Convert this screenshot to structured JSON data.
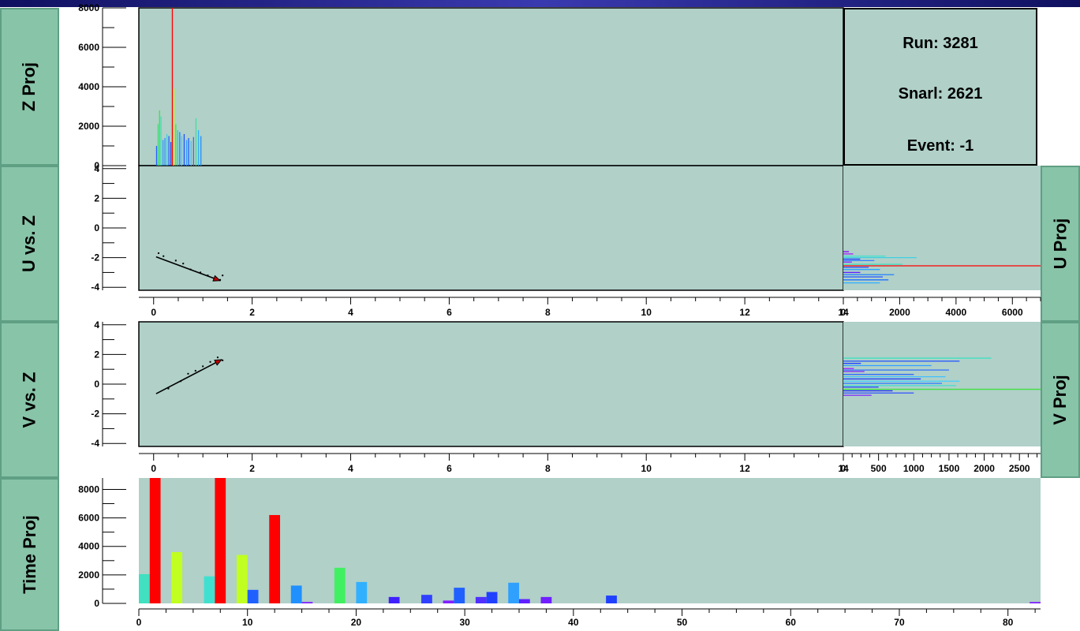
{
  "labels": {
    "zproj": "Z Proj",
    "uvsz": "U vs. Z",
    "vvsz": "V vs. Z",
    "timeproj": "Time Proj",
    "uproj": "U Proj",
    "vproj": "V Proj"
  },
  "info": {
    "run": "Run: 3281",
    "snarl": "Snarl: 2621",
    "event": "Event: -1"
  },
  "colors": {
    "panel_bg": "#b0d0c8",
    "label_bg": "#88c4a8",
    "accent_red": "#ff0000"
  },
  "chart_data": [
    {
      "type": "bar",
      "name": "zproj",
      "xlim": [
        -0.3,
        14
      ],
      "ylim": [
        0,
        8000
      ],
      "yticks": [
        0,
        2000,
        4000,
        6000,
        8000
      ],
      "bars": [
        {
          "x": 0.06,
          "y": 1000,
          "c": "#2060ff"
        },
        {
          "x": 0.09,
          "y": 2100,
          "c": "#40e080"
        },
        {
          "x": 0.12,
          "y": 2800,
          "c": "#40e040"
        },
        {
          "x": 0.15,
          "y": 2500,
          "c": "#40e0c0"
        },
        {
          "x": 0.19,
          "y": 1300,
          "c": "#20a0ff"
        },
        {
          "x": 0.23,
          "y": 1400,
          "c": "#3090ff"
        },
        {
          "x": 0.27,
          "y": 1600,
          "c": "#40d0e0"
        },
        {
          "x": 0.31,
          "y": 1500,
          "c": "#2060ff"
        },
        {
          "x": 0.35,
          "y": 1200,
          "c": "#2040ff"
        },
        {
          "x": 0.38,
          "y": 9000,
          "c": "#ff0000"
        },
        {
          "x": 0.41,
          "y": 3900,
          "c": "#c0ff00"
        },
        {
          "x": 0.45,
          "y": 2100,
          "c": "#40e060"
        },
        {
          "x": 0.49,
          "y": 1800,
          "c": "#30c0ff"
        },
        {
          "x": 0.53,
          "y": 1700,
          "c": "#2080ff"
        },
        {
          "x": 0.57,
          "y": 1500,
          "c": "#40d0ff"
        },
        {
          "x": 0.62,
          "y": 1600,
          "c": "#2050ff"
        },
        {
          "x": 0.67,
          "y": 1300,
          "c": "#30a0ff"
        },
        {
          "x": 0.71,
          "y": 1400,
          "c": "#2060ff"
        },
        {
          "x": 0.76,
          "y": 1250,
          "c": "#40c0ff"
        },
        {
          "x": 0.81,
          "y": 1450,
          "c": "#3070ff"
        },
        {
          "x": 0.86,
          "y": 2400,
          "c": "#40e0a0"
        },
        {
          "x": 0.91,
          "y": 1800,
          "c": "#30b0ff"
        },
        {
          "x": 0.96,
          "y": 1500,
          "c": "#2090ff"
        }
      ]
    },
    {
      "type": "scatter",
      "name": "uvsz",
      "xlim": [
        -0.3,
        14
      ],
      "ylim": [
        -4.2,
        4.2
      ],
      "xticks": [
        0,
        2,
        4,
        6,
        8,
        10,
        12,
        14
      ],
      "yticks": [
        -4,
        -2,
        0,
        2,
        4
      ],
      "points": [
        [
          0.1,
          -1.7
        ],
        [
          0.2,
          -1.9
        ],
        [
          0.45,
          -2.2
        ],
        [
          0.6,
          -2.4
        ],
        [
          0.75,
          -2.8
        ],
        [
          0.95,
          -3.0
        ],
        [
          1.1,
          -3.2
        ],
        [
          1.4,
          -3.2
        ],
        [
          1.35,
          -3.5
        ]
      ],
      "arrow": {
        "from": [
          0.05,
          -1.95
        ],
        "to": [
          1.35,
          -3.55
        ]
      }
    },
    {
      "type": "bar",
      "name": "uproj",
      "orientation": "horizontal",
      "xlim": [
        0,
        7000
      ],
      "xticks": [
        0,
        2000,
        4000,
        6000
      ],
      "ylim": [
        -4.2,
        4.2
      ],
      "bars": [
        {
          "y": -1.6,
          "x": 200,
          "c": "#8000ff"
        },
        {
          "y": -1.75,
          "x": 350,
          "c": "#a020ff"
        },
        {
          "y": -1.9,
          "x": 1500,
          "c": "#40e0d0"
        },
        {
          "y": -2.0,
          "x": 2600,
          "c": "#40d0e0"
        },
        {
          "y": -2.1,
          "x": 600,
          "c": "#2040ff"
        },
        {
          "y": -2.2,
          "x": 1100,
          "c": "#3080ff"
        },
        {
          "y": -2.3,
          "x": 300,
          "c": "#8020ff"
        },
        {
          "y": -2.45,
          "x": 2100,
          "c": "#40e0c0"
        },
        {
          "y": -2.55,
          "x": 7000,
          "c": "#ff0000"
        },
        {
          "y": -2.65,
          "x": 900,
          "c": "#2050ff"
        },
        {
          "y": -2.8,
          "x": 1300,
          "c": "#30a0ff"
        },
        {
          "y": -3.0,
          "x": 600,
          "c": "#6020ff"
        },
        {
          "y": -3.15,
          "x": 1800,
          "c": "#2080ff"
        },
        {
          "y": -3.3,
          "x": 1400,
          "c": "#3060ff"
        },
        {
          "y": -3.5,
          "x": 1600,
          "c": "#2070ff"
        },
        {
          "y": -3.7,
          "x": 1300,
          "c": "#30b0ff"
        }
      ]
    },
    {
      "type": "scatter",
      "name": "vvsz",
      "xlim": [
        -0.3,
        14
      ],
      "ylim": [
        -4.2,
        4.2
      ],
      "xticks": [
        0,
        2,
        4,
        6,
        8,
        10,
        12,
        14
      ],
      "yticks": [
        -4,
        -2,
        0,
        2,
        4
      ],
      "points": [
        [
          0.3,
          -0.3
        ],
        [
          0.55,
          0.2
        ],
        [
          0.7,
          0.7
        ],
        [
          0.85,
          0.9
        ],
        [
          1.0,
          1.2
        ],
        [
          1.15,
          1.5
        ],
        [
          1.3,
          1.8
        ],
        [
          1.4,
          1.6
        ]
      ],
      "arrow": {
        "from": [
          0.05,
          -0.65
        ],
        "to": [
          1.38,
          1.65
        ]
      }
    },
    {
      "type": "bar",
      "name": "vproj",
      "orientation": "horizontal",
      "xlim": [
        0,
        2800
      ],
      "xticks": [
        0,
        500,
        1000,
        1500,
        2000,
        2500
      ],
      "ylim": [
        -4.2,
        4.2
      ],
      "bars": [
        {
          "y": 1.75,
          "x": 2100,
          "c": "#40e0c0"
        },
        {
          "y": 1.55,
          "x": 1650,
          "c": "#2050ff"
        },
        {
          "y": 1.4,
          "x": 250,
          "c": "#2040ff"
        },
        {
          "y": 1.25,
          "x": 1250,
          "c": "#30a0ff"
        },
        {
          "y": 1.05,
          "x": 150,
          "c": "#a020ff"
        },
        {
          "y": 0.95,
          "x": 1500,
          "c": "#3070ff"
        },
        {
          "y": 0.85,
          "x": 300,
          "c": "#8020ff"
        },
        {
          "y": 0.65,
          "x": 1000,
          "c": "#2060ff"
        },
        {
          "y": 0.5,
          "x": 1450,
          "c": "#40c0ff"
        },
        {
          "y": 0.35,
          "x": 1100,
          "c": "#2040ff"
        },
        {
          "y": 0.2,
          "x": 1650,
          "c": "#40d0ff"
        },
        {
          "y": 0.05,
          "x": 1400,
          "c": "#3080ff"
        },
        {
          "y": -0.1,
          "x": 1600,
          "c": "#40e0d0"
        },
        {
          "y": -0.2,
          "x": 500,
          "c": "#2040ff"
        },
        {
          "y": -0.35,
          "x": 2900,
          "c": "#40e040"
        },
        {
          "y": -0.45,
          "x": 700,
          "c": "#2020ff"
        },
        {
          "y": -0.6,
          "x": 1000,
          "c": "#3050ff"
        },
        {
          "y": -0.75,
          "x": 400,
          "c": "#8020ff"
        }
      ]
    },
    {
      "type": "bar",
      "name": "timeproj",
      "xlim": [
        0,
        83
      ],
      "xticks": [
        0,
        10,
        20,
        30,
        40,
        50,
        60,
        70,
        80
      ],
      "ylim": [
        0,
        8800
      ],
      "yticks": [
        0,
        2000,
        4000,
        6000,
        8000
      ],
      "bars": [
        {
          "x": 0.5,
          "y": 2050,
          "c": "#40e0c0"
        },
        {
          "x": 1.5,
          "y": 8800,
          "c": "#ff0000"
        },
        {
          "x": 3.5,
          "y": 3600,
          "c": "#c0ff20"
        },
        {
          "x": 6.5,
          "y": 1900,
          "c": "#40e0d0"
        },
        {
          "x": 7.5,
          "y": 8800,
          "c": "#ff0000"
        },
        {
          "x": 9.5,
          "y": 3400,
          "c": "#c0ff20"
        },
        {
          "x": 10.5,
          "y": 950,
          "c": "#2060ff"
        },
        {
          "x": 12.5,
          "y": 6200,
          "c": "#ff0000"
        },
        {
          "x": 14.5,
          "y": 1250,
          "c": "#2090ff"
        },
        {
          "x": 15.5,
          "y": 100,
          "c": "#8020ff"
        },
        {
          "x": 18.5,
          "y": 2500,
          "c": "#40f060"
        },
        {
          "x": 20.5,
          "y": 1500,
          "c": "#30b0ff"
        },
        {
          "x": 23.5,
          "y": 450,
          "c": "#4020ff"
        },
        {
          "x": 26.5,
          "y": 600,
          "c": "#3040ff"
        },
        {
          "x": 28.5,
          "y": 200,
          "c": "#8020ff"
        },
        {
          "x": 29.5,
          "y": 1100,
          "c": "#2060ff"
        },
        {
          "x": 31.5,
          "y": 450,
          "c": "#5030ff"
        },
        {
          "x": 32.5,
          "y": 800,
          "c": "#2040ff"
        },
        {
          "x": 34.5,
          "y": 1450,
          "c": "#30a0ff"
        },
        {
          "x": 35.5,
          "y": 300,
          "c": "#6020ff"
        },
        {
          "x": 37.5,
          "y": 450,
          "c": "#7020ff"
        },
        {
          "x": 43.5,
          "y": 550,
          "c": "#2040ff"
        },
        {
          "x": 82.5,
          "y": 100,
          "c": "#8020ff"
        }
      ]
    }
  ]
}
